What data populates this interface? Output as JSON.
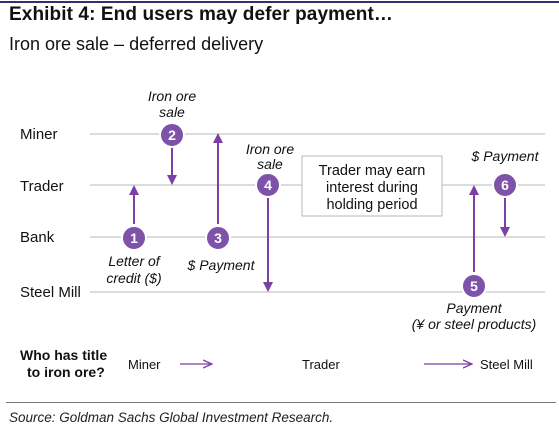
{
  "header": {
    "title": "Exhibit 4: End users may defer payment…",
    "subtitle": "Iron ore sale – deferred delivery"
  },
  "rows": [
    "Miner",
    "Trader",
    "Bank",
    "Steel Mill"
  ],
  "note": {
    "lines": [
      "Trader may earn",
      "interest during",
      "holding period"
    ]
  },
  "steps": [
    {
      "num": "1",
      "label_lines": [
        "Letter of",
        "credit ($)"
      ]
    },
    {
      "num": "2",
      "label_lines": [
        "Iron ore",
        "sale"
      ]
    },
    {
      "num": "3",
      "label_lines": [
        "$ Payment"
      ]
    },
    {
      "num": "4",
      "label_lines": [
        "Iron ore",
        "sale"
      ]
    },
    {
      "num": "5",
      "label_lines": [
        "Payment",
        "(¥ or steel products)"
      ]
    },
    {
      "num": "6",
      "label_lines": [
        "$ Payment"
      ]
    }
  ],
  "title_flow": {
    "question_lines": [
      "Who has title",
      "to iron ore?"
    ],
    "holders": [
      "Miner",
      "Trader",
      "Steel Mill"
    ]
  },
  "footer": {
    "source": "Source: Goldman Sachs Global Investment Research."
  },
  "colors": {
    "accent": "#7b3fa6",
    "accent_fill": "#7d52a8",
    "row_line": "#b8b8b8",
    "header_rule": "#3f2a6b"
  }
}
